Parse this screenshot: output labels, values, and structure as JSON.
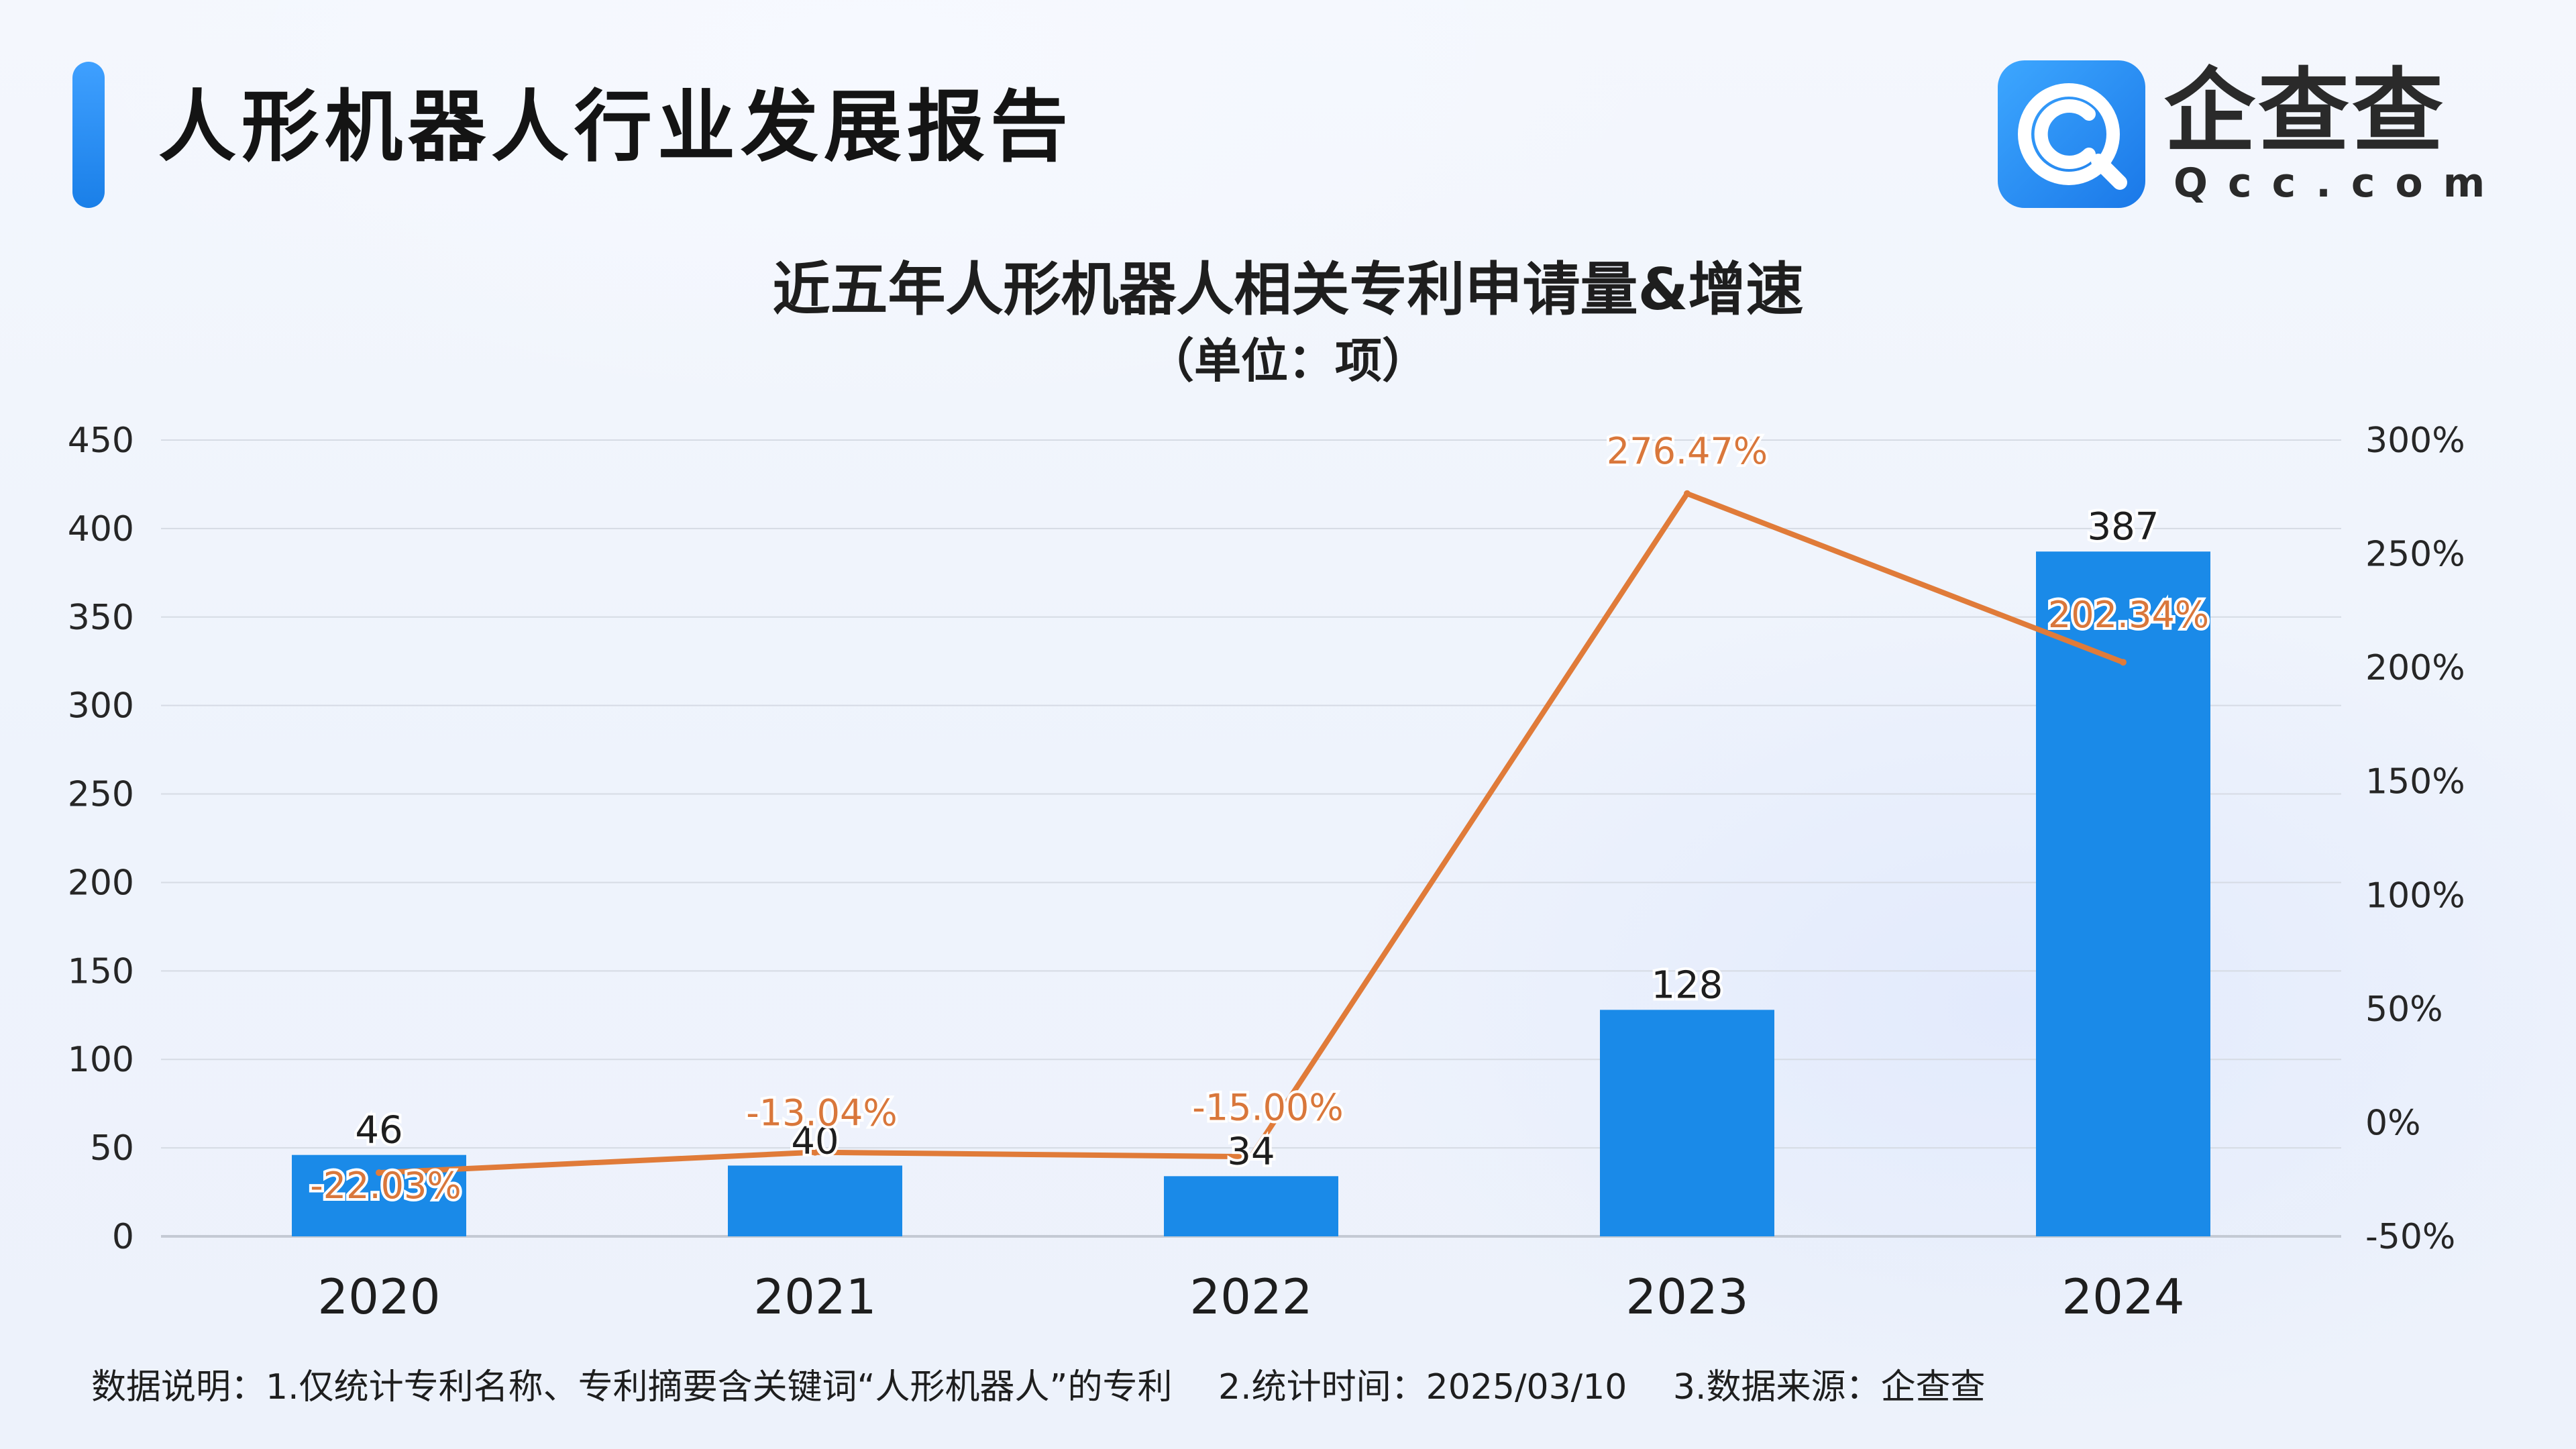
{
  "header": {
    "report_title": "人形机器人行业发展报告",
    "logo_name": "企查查",
    "logo_domain": "Qcc.com"
  },
  "chart_data": {
    "type": "bar",
    "title": "近五年人形机器人相关专利申请量&增速",
    "subtitle": "（单位：项）",
    "categories": [
      "2020",
      "2021",
      "2022",
      "2023",
      "2024"
    ],
    "series": [
      {
        "type": "bar",
        "values": [
          46,
          40,
          34,
          128,
          387
        ],
        "color": "#1a8ae8",
        "axis": "left",
        "labels": [
          "46",
          "40",
          "34",
          "128",
          "387"
        ]
      },
      {
        "type": "line",
        "values": [
          -22.03,
          -13.04,
          -15.0,
          276.47,
          202.34
        ],
        "color": "#e07b39",
        "axis": "right",
        "labels": [
          "-22.03%",
          "-13.04%",
          "-15.00%",
          "276.47%",
          "202.34%"
        ]
      }
    ],
    "y_left": {
      "ylim": [
        0,
        450
      ],
      "ticks": [
        "0",
        "50",
        "100",
        "150",
        "200",
        "250",
        "300",
        "350",
        "400",
        "450"
      ]
    },
    "y_right": {
      "ylim": [
        -50,
        300
      ],
      "ticks": [
        "-50%",
        "0%",
        "50%",
        "100%",
        "150%",
        "200%",
        "250%",
        "300%"
      ]
    },
    "grid": true,
    "legend": "none"
  },
  "footnote": {
    "note1": "数据说明：1.仅统计专利名称、专利摘要含关键词“人形机器人”的专利",
    "note2": "2.统计时间：2025/03/10",
    "note3": "3.数据来源：企查查"
  },
  "colors": {
    "accent": "#1a8ae8",
    "line": "#e07b39",
    "grid": "#d6dbe4"
  }
}
